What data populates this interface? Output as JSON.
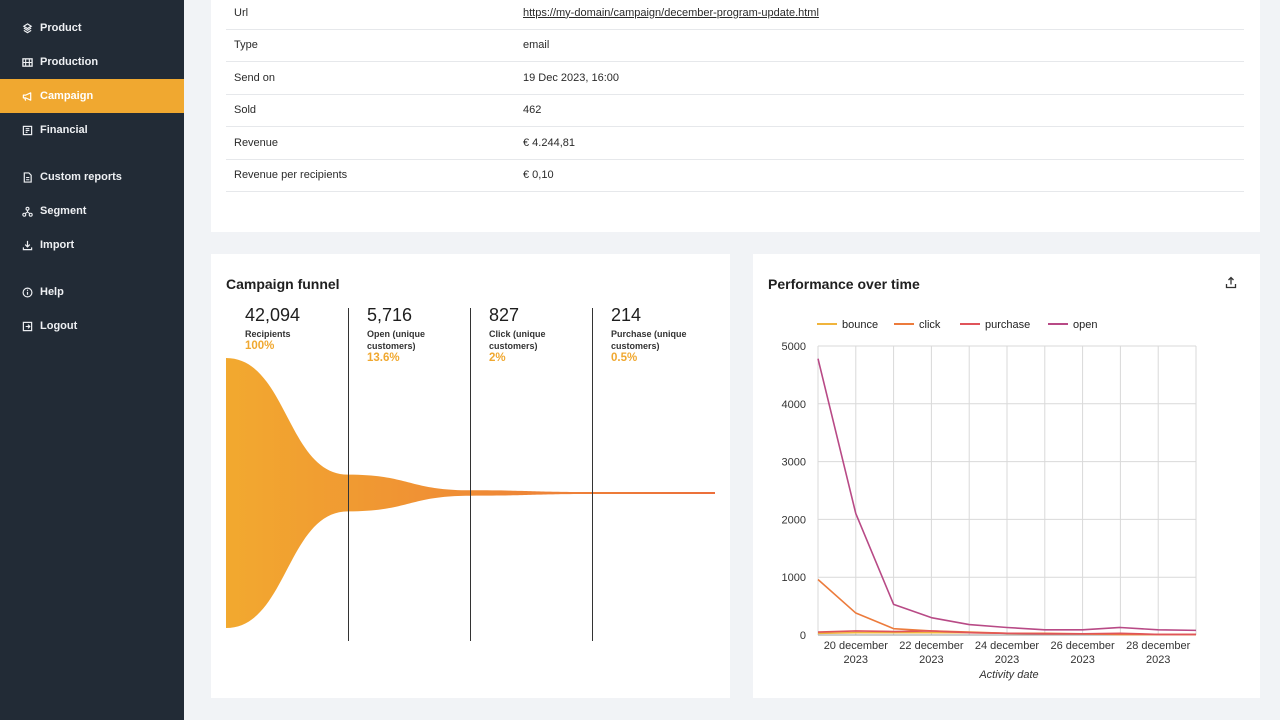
{
  "sidebar": {
    "items": [
      {
        "label": "Product",
        "icon": "product-icon"
      },
      {
        "label": "Production",
        "icon": "production-icon"
      },
      {
        "label": "Campaign",
        "icon": "megaphone-icon",
        "active": true
      },
      {
        "label": "Financial",
        "icon": "financial-icon"
      },
      {
        "label": "Custom reports",
        "icon": "report-icon"
      },
      {
        "label": "Segment",
        "icon": "segment-icon"
      },
      {
        "label": "Import",
        "icon": "import-icon"
      },
      {
        "label": "Help",
        "icon": "help-icon"
      },
      {
        "label": "Logout",
        "icon": "logout-icon"
      }
    ],
    "active_color": "#f0a830"
  },
  "details": {
    "rows": [
      {
        "label": "Url",
        "value": "https://my-domain/campaign/december-program-update.html"
      },
      {
        "label": "Type",
        "value": "email"
      },
      {
        "label": "Send on",
        "value": "19 Dec 2023, 16:00"
      },
      {
        "label": "Sold",
        "value": "462"
      },
      {
        "label": "Revenue",
        "value": "€ 4.244,81"
      },
      {
        "label": "Revenue per recipients",
        "value": "€ 0,10"
      }
    ]
  },
  "funnel": {
    "title": "Campaign funnel",
    "stages": [
      {
        "value": "42,094",
        "label": "Recipients",
        "percent": "100%",
        "ratio": 1.0
      },
      {
        "value": "5,716",
        "label": "Open (unique customers)",
        "percent": "13.6%",
        "ratio": 0.136
      },
      {
        "value": "827",
        "label": "Click (unique customers)",
        "percent": "2%",
        "ratio": 0.02
      },
      {
        "value": "214",
        "label": "Purchase (unique customers)",
        "percent": "0.5%",
        "ratio": 0.005
      }
    ],
    "colors": {
      "start": "#f2a92f",
      "end": "#ec6f3b"
    }
  },
  "performance": {
    "title": "Performance over time"
  },
  "chart_data": {
    "type": "line",
    "x": [
      "2023-12-19",
      "2023-12-20",
      "2023-12-21",
      "2023-12-22",
      "2023-12-23",
      "2023-12-24",
      "2023-12-25",
      "2023-12-26",
      "2023-12-27",
      "2023-12-28",
      "2023-12-29"
    ],
    "xticks": [
      {
        "x": "2023-12-20",
        "line1": "20 december",
        "line2": "2023"
      },
      {
        "x": "2023-12-22",
        "line1": "22 december",
        "line2": "2023"
      },
      {
        "x": "2023-12-24",
        "line1": "24 december",
        "line2": "2023"
      },
      {
        "x": "2023-12-26",
        "line1": "26 december",
        "line2": "2023"
      },
      {
        "x": "2023-12-28",
        "line1": "28 december",
        "line2": "2023"
      }
    ],
    "series": [
      {
        "name": "bounce",
        "color": "#f0b43c",
        "values": [
          30,
          40,
          40,
          40,
          40,
          30,
          20,
          20,
          10,
          10,
          10
        ]
      },
      {
        "name": "click",
        "color": "#ec7b3c",
        "values": [
          960,
          380,
          110,
          70,
          50,
          30,
          30,
          20,
          10,
          10,
          10
        ]
      },
      {
        "name": "purchase",
        "color": "#e0545a",
        "values": [
          50,
          70,
          60,
          70,
          40,
          30,
          20,
          20,
          30,
          10,
          10
        ]
      },
      {
        "name": "open",
        "color": "#b84a86",
        "values": [
          4780,
          2100,
          530,
          300,
          180,
          130,
          90,
          90,
          130,
          90,
          80
        ]
      }
    ],
    "xlabel": "Activity date",
    "ylabel": "",
    "ylim": [
      0,
      5000
    ],
    "yticks": [
      0,
      1000,
      2000,
      3000,
      4000,
      5000
    ],
    "grid": true,
    "legend": "top-left"
  }
}
